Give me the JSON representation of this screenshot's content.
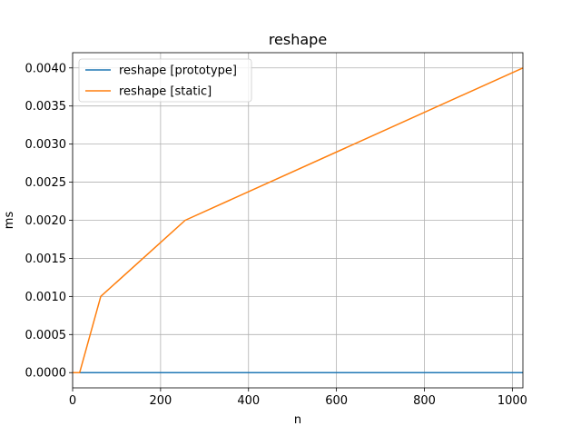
{
  "chart_data": {
    "type": "line",
    "title": "reshape",
    "xlabel": "n",
    "ylabel": "ms",
    "xlim": [
      0,
      1024
    ],
    "ylim": [
      -0.0002,
      0.0042
    ],
    "grid": true,
    "legend_position": "top-left",
    "x_ticks": [
      0,
      200,
      400,
      600,
      800,
      1000
    ],
    "x_tick_labels": [
      "0",
      "200",
      "400",
      "600",
      "800",
      "1000"
    ],
    "y_ticks": [
      0,
      0.0005,
      0.001,
      0.0015,
      0.002,
      0.0025,
      0.003,
      0.0035,
      0.004
    ],
    "y_tick_labels": [
      "0.0000",
      "0.0005",
      "0.0010",
      "0.0015",
      "0.0020",
      "0.0025",
      "0.0030",
      "0.0035",
      "0.0040"
    ],
    "series": [
      {
        "name": "reshape [prototype]",
        "color": "#1f77b4",
        "x": [
          1,
          4,
          16,
          64,
          256,
          1024
        ],
        "y": [
          0,
          0,
          0,
          0,
          0,
          0
        ]
      },
      {
        "name": "reshape [static]",
        "color": "#ff7f0e",
        "x": [
          1,
          4,
          16,
          64,
          256,
          1024
        ],
        "y": [
          0,
          0,
          0,
          0.001,
          0.002,
          0.004
        ]
      }
    ]
  }
}
